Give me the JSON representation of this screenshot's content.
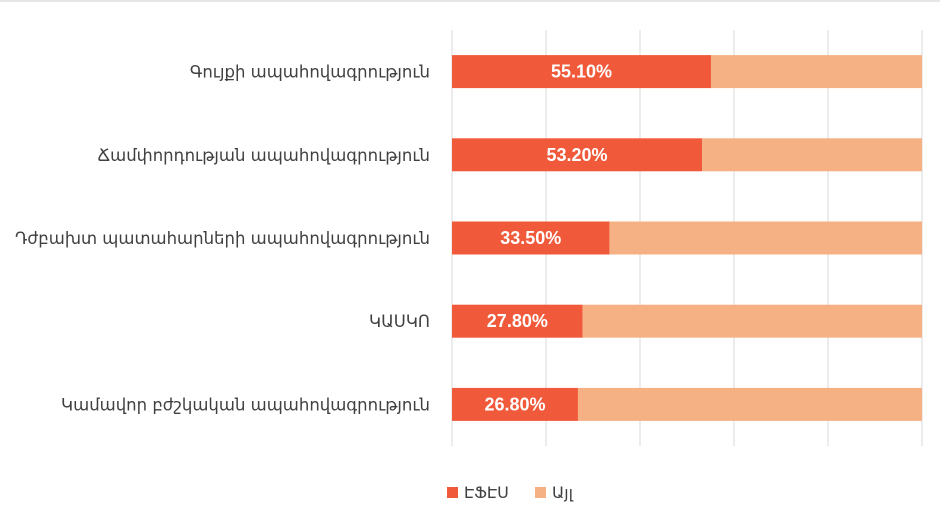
{
  "chart_data": {
    "type": "bar",
    "orientation": "horizontal",
    "stacked": "100%",
    "categories": [
      "Գույքի ապահովագրություն",
      "Ճամփորդության ապահովագրություն",
      "Դժբախտ պատահարների ապահովագրություն",
      "ԿԱՍԿՈ",
      "Կամավոր բժշկական ապահովագրություն"
    ],
    "series": [
      {
        "name": "ԷՖԷՍ",
        "values": [
          55.1,
          53.2,
          33.5,
          27.8,
          26.8
        ],
        "color": "#f05a3a"
      },
      {
        "name": "Այլ",
        "values": [
          44.9,
          46.8,
          66.5,
          72.2,
          73.2
        ],
        "color": "#f5b084"
      }
    ],
    "data_labels": [
      "55.10%",
      "53.20%",
      "33.50%",
      "27.80%",
      "26.80%"
    ],
    "xlim": [
      0,
      100
    ],
    "grid": true,
    "legend_position": "bottom"
  }
}
